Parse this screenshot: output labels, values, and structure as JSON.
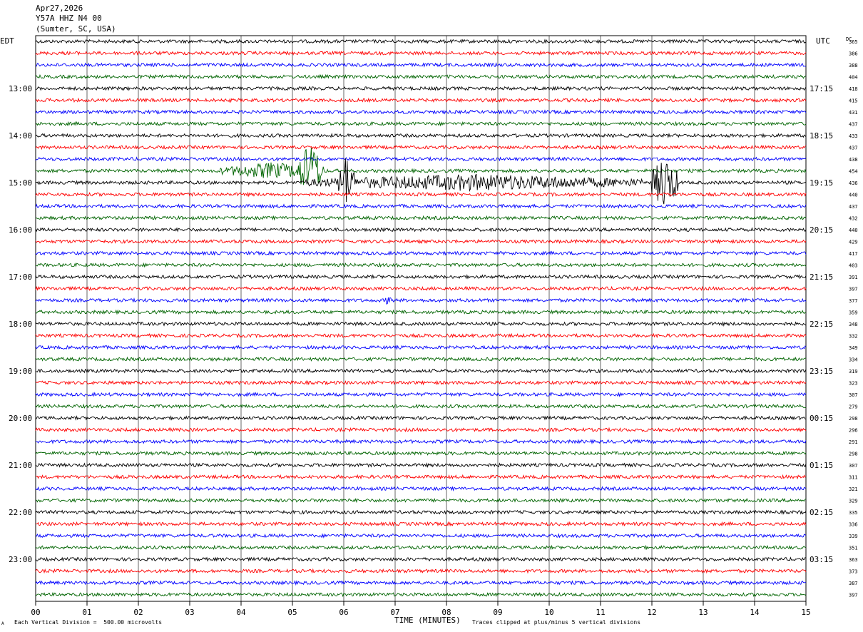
{
  "header": {
    "date": "Apr27,2026",
    "station": "Y57A HHZ N4 00",
    "location": "(Sumter, SC, USA)"
  },
  "footer": {
    "scale_note": "Each Vertical Division =  500.00 microvolts",
    "clip_note": "Traces clipped at plus/minus 5 vertical divisions",
    "corner_mark": "A"
  },
  "chart_data": {
    "type": "line",
    "title": "",
    "xlabel": "TIME (MINUTES)",
    "ylabel_left": "EDT",
    "ylabel_right": "UTC",
    "dc_label": "DC",
    "x_ticks": [
      "00",
      "01",
      "02",
      "03",
      "04",
      "05",
      "06",
      "07",
      "08",
      "09",
      "10",
      "11",
      "12",
      "13",
      "14",
      "15"
    ],
    "xlim": [
      0,
      15
    ],
    "left_time_labels": [
      "13:00",
      "14:00",
      "15:00",
      "16:00",
      "17:00",
      "18:00",
      "19:00",
      "20:00",
      "21:00",
      "22:00",
      "23:00"
    ],
    "right_time_labels": [
      "17:15",
      "18:15",
      "19:15",
      "20:15",
      "21:15",
      "22:15",
      "23:15",
      "00:15",
      "01:15",
      "02:15",
      "03:15"
    ],
    "trace_colors": [
      "#000000",
      "#ff0000",
      "#0000ff",
      "#006400"
    ],
    "dc_offsets": [
      365,
      386,
      388,
      404,
      418,
      415,
      431,
      437,
      433,
      437,
      438,
      454,
      436,
      440,
      437,
      432,
      440,
      429,
      417,
      403,
      391,
      397,
      377,
      359,
      348,
      332,
      349,
      334,
      319,
      323,
      307,
      279,
      298,
      296,
      291,
      298,
      307,
      311,
      321,
      329,
      335,
      336,
      339,
      351,
      363,
      373,
      387,
      397
    ],
    "events": [
      {
        "trace": 11,
        "start_min": 3.6,
        "end_min": 5.6,
        "amplitude": "large"
      },
      {
        "trace": 11,
        "start_min": 5.1,
        "end_min": 5.6,
        "amplitude": "clipped"
      },
      {
        "trace": 12,
        "start_min": 5.2,
        "end_min": 11.8,
        "amplitude": "large"
      },
      {
        "trace": 12,
        "start_min": 5.9,
        "end_min": 6.2,
        "amplitude": "clipped"
      },
      {
        "trace": 12,
        "start_min": 12.0,
        "end_min": 12.5,
        "amplitude": "clipped"
      },
      {
        "trace": 22,
        "start_min": 6.8,
        "end_min": 6.95,
        "amplitude": "medium"
      }
    ]
  }
}
